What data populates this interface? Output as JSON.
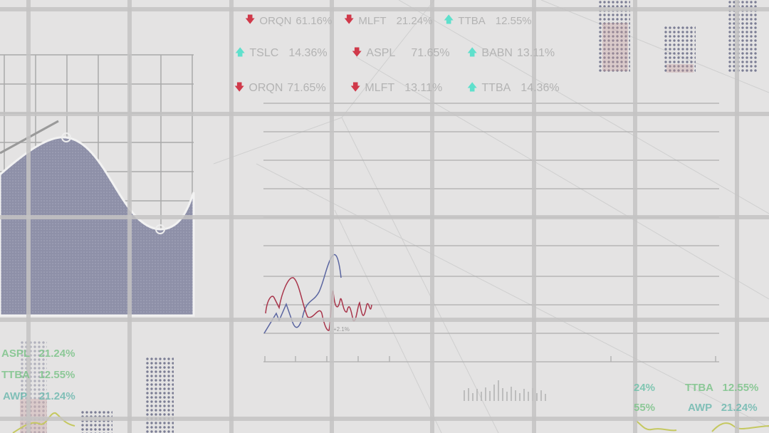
{
  "colors": {
    "background": "#e4e3e3",
    "down": "#d0394a",
    "up": "#5fe0cc",
    "area": "#8e90a8",
    "series_red": "#a8344a",
    "series_blue": "#5a65a0"
  },
  "tickers_top": [
    {
      "symbol": "ORQN",
      "change": "61.16%",
      "direction": "down"
    },
    {
      "symbol": "MLFT",
      "change": "21.24%",
      "direction": "down"
    },
    {
      "symbol": "TTBA",
      "change": "12.55%",
      "direction": "up"
    },
    {
      "symbol": "TSLC",
      "change": "14.36%",
      "direction": "up"
    },
    {
      "symbol": "ASPL",
      "change": "71.65%",
      "direction": "down"
    },
    {
      "symbol": "BABN",
      "change": "13.11%",
      "direction": "up"
    },
    {
      "symbol": "ORQN",
      "change": "71.65%",
      "direction": "down"
    },
    {
      "symbol": "MLFT",
      "change": "13.11%",
      "direction": "down"
    },
    {
      "symbol": "TTBA",
      "change": "14.36%",
      "direction": "up"
    }
  ],
  "tickers_bottom_left": [
    {
      "symbol": "ASPL",
      "change": "21.24%"
    },
    {
      "symbol": "TTBA",
      "change": "12.55%"
    },
    {
      "symbol": "AWP",
      "change": "21.24%"
    }
  ],
  "tickers_bottom_right": [
    {
      "symbol": "",
      "change": "24%"
    },
    {
      "symbol": "TTBA",
      "change": "12.55%"
    },
    {
      "symbol": "",
      "change": "55%"
    },
    {
      "symbol": "AWP",
      "change": "21.24%"
    }
  ],
  "line_chart": {
    "annotation": "+2.1%"
  }
}
